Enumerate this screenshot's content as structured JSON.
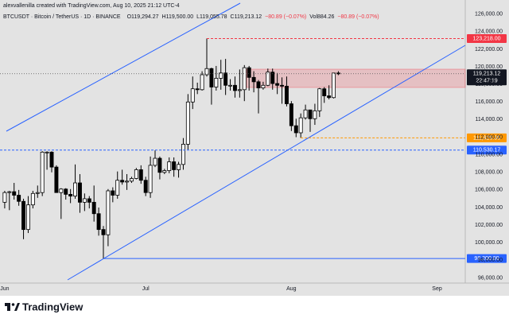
{
  "chart_data": {
    "type": "candlestick",
    "title": "alexvallenilla created with TradingView.com, Aug 10, 2025 21:12 UTC-4",
    "symbol": "BTCUSDT · Bitcoin / TetherUS · 1D · BINANCE",
    "legend_items": [
      "O119,294.27",
      "H119,500.00",
      "L119,055.78",
      "C119,213.12",
      "−80.89 (−0.07%)",
      "Vol884.26",
      "−80.89 (−0.07%)"
    ],
    "open": [
      104600,
      105700,
      105800,
      105400,
      104700,
      101500,
      104300,
      105600,
      105700,
      110300,
      110300,
      108600,
      105700,
      106100,
      105500,
      105300,
      106800,
      104600,
      105000,
      104600,
      103300,
      101500,
      100900,
      105900,
      105400,
      107100,
      106900,
      107000,
      107300,
      108300,
      107100,
      105700,
      108800,
      109600,
      108000,
      108200,
      109200,
      108300,
      108900,
      111200,
      116000,
      117500,
      117400,
      119100,
      119800,
      117700,
      118700,
      119300,
      117900,
      117900,
      117300,
      117400,
      119900,
      118800,
      118300,
      117600,
      117900,
      119400,
      118100,
      117900,
      117800,
      115800,
      113300,
      112500,
      114200,
      115100,
      114100,
      115000,
      117500,
      116700,
      116500,
      119294.27
    ],
    "high": [
      105900,
      105900,
      106800,
      106000,
      105000,
      105300,
      105900,
      106500,
      110400,
      110400,
      110400,
      108800,
      106200,
      106200,
      106100,
      108900,
      107800,
      105600,
      105300,
      106500,
      104000,
      101900,
      106100,
      106300,
      108100,
      108300,
      107800,
      107500,
      108500,
      108800,
      107500,
      109800,
      110500,
      109800,
      108400,
      109700,
      109700,
      109200,
      111900,
      116900,
      118900,
      118200,
      119500,
      123218,
      119900,
      120100,
      120800,
      120900,
      118600,
      118900,
      119700,
      120200,
      120100,
      119500,
      118500,
      118300,
      119800,
      119800,
      119300,
      118800,
      118900,
      116100,
      114100,
      114700,
      115700,
      115100,
      115800,
      117600,
      117700,
      117900,
      119300,
      119500
    ],
    "low": [
      103900,
      103700,
      104900,
      104200,
      100400,
      101100,
      103900,
      105100,
      105300,
      108300,
      108000,
      105700,
      102700,
      104900,
      104500,
      105000,
      103400,
      103600,
      103900,
      102400,
      100800,
      98200,
      99600,
      104600,
      105000,
      106600,
      106000,
      106800,
      107200,
      106700,
      105300,
      105100,
      108600,
      107200,
      107800,
      107900,
      107500,
      107400,
      108300,
      110600,
      115200,
      116900,
      117300,
      118900,
      115700,
      117300,
      117400,
      116800,
      117300,
      116500,
      116500,
      116100,
      117300,
      117100,
      114700,
      117400,
      117800,
      117400,
      116900,
      115800,
      115500,
      112700,
      112000,
      111920,
      114000,
      112600,
      113400,
      114300,
      115900,
      116300,
      116400,
      119055.78
    ],
    "close": [
      105700,
      105800,
      105400,
      104700,
      101500,
      104300,
      105600,
      105700,
      110300,
      110300,
      108600,
      105700,
      106100,
      105500,
      105300,
      106800,
      104600,
      105000,
      104600,
      103300,
      101500,
      100900,
      105900,
      105400,
      107100,
      106900,
      107000,
      107300,
      108300,
      107100,
      105700,
      108800,
      109600,
      108000,
      108200,
      109200,
      108300,
      108900,
      111200,
      116000,
      117500,
      117400,
      119100,
      119800,
      117700,
      118700,
      119300,
      117900,
      117900,
      117300,
      117400,
      119900,
      118800,
      118300,
      117600,
      117900,
      119400,
      118100,
      117900,
      117800,
      115800,
      113300,
      112500,
      114200,
      115100,
      114100,
      115000,
      117500,
      116700,
      116500,
      119294.27,
      119213.12
    ],
    "up_color": "#ffffff",
    "down_color": "#000000",
    "xlim": [
      -1,
      98
    ],
    "xticks": [
      {
        "value": 0,
        "label": "Jun"
      },
      {
        "value": 30,
        "label": "Jul"
      },
      {
        "value": 61,
        "label": "Aug"
      },
      {
        "value": 92,
        "label": "Sep"
      }
    ],
    "ylim": [
      95500,
      127600
    ],
    "yticks": [
      {
        "value": 96000,
        "label": "96,000.00"
      },
      {
        "value": 98000,
        "label": "98,000.00"
      },
      {
        "value": 100000,
        "label": "100,000.00"
      },
      {
        "value": 102000,
        "label": "102,000.00"
      },
      {
        "value": 104000,
        "label": "104,000.00"
      },
      {
        "value": 106000,
        "label": "106,000.00"
      },
      {
        "value": 108000,
        "label": "108,000.00"
      },
      {
        "value": 110000,
        "label": "110,000.00"
      },
      {
        "value": 112000,
        "label": "112,000.00"
      },
      {
        "value": 114000,
        "label": "114,000.00"
      },
      {
        "value": 116000,
        "label": "116,000.00"
      },
      {
        "value": 118000,
        "label": "118,000.00"
      },
      {
        "value": 120000,
        "label": "120,000.00"
      },
      {
        "value": 122000,
        "label": "122,000.00"
      },
      {
        "value": 124000,
        "label": "124,000.00"
      },
      {
        "value": 126000,
        "label": "126,000.00"
      }
    ],
    "grid": false,
    "price_lines": [
      {
        "value": 123218,
        "label": "123,218.00",
        "color": "#f23645",
        "style": "dashed"
      },
      {
        "value": 111920,
        "label": "111,920.00",
        "color": "#ff9800",
        "style": "dashed"
      },
      {
        "value": 110530.17,
        "label": "110,530.17",
        "color": "#2962ff",
        "style": "dashed"
      },
      {
        "value": 98200,
        "label": "98,200.00",
        "color": "#2962ff",
        "style": "solid"
      }
    ],
    "last_price": {
      "value": 119213.12,
      "label": "119,213.12",
      "countdown": "22:47:19",
      "color": "#131722"
    },
    "brand": "TradingView"
  }
}
